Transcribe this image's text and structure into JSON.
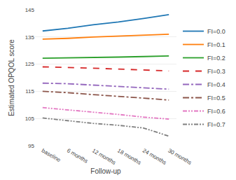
{
  "chart_data": {
    "type": "line",
    "categories": [
      "baseline",
      "6 months",
      "12 months",
      "18 months",
      "24 months",
      "30 months"
    ],
    "series": [
      {
        "name": "FI=0.0",
        "line_style": "solid",
        "values": [
          137.2,
          138.2,
          139.5,
          140.5,
          141.8,
          143.2
        ]
      },
      {
        "name": "FI=0.1",
        "line_style": "solid",
        "values": [
          134.2,
          134.5,
          135.0,
          135.3,
          135.7,
          136.0
        ]
      },
      {
        "name": "FI=0.2",
        "line_style": "solid",
        "values": [
          127.2,
          127.3,
          127.5,
          127.6,
          127.8,
          128.0
        ]
      },
      {
        "name": "FI=0.3",
        "line_style": "dashed",
        "values": [
          124.0,
          123.8,
          123.5,
          123.2,
          122.8,
          122.5
        ]
      },
      {
        "name": "FI=0.4",
        "line_style": "dashdot",
        "values": [
          118.0,
          117.8,
          117.3,
          116.8,
          116.3,
          115.8
        ]
      },
      {
        "name": "FI=0.5",
        "line_style": "dashdot",
        "values": [
          115.0,
          114.5,
          113.8,
          113.2,
          112.5,
          111.8
        ]
      },
      {
        "name": "FI=0.6",
        "line_style": "dashdotdot",
        "values": [
          109.0,
          108.2,
          107.3,
          106.5,
          105.5,
          104.8
        ]
      },
      {
        "name": "FI=0.7",
        "line_style": "dashdotdot",
        "values": [
          105.2,
          104.2,
          103.2,
          102.5,
          101.5,
          98.5
        ]
      }
    ],
    "xlabel": "Follow-up",
    "ylabel": "Estimated OPQOL score",
    "ylim": [
      95,
      145
    ],
    "yticks": [
      95,
      105,
      115,
      125,
      135,
      145
    ],
    "grid": true,
    "legend": "right"
  }
}
